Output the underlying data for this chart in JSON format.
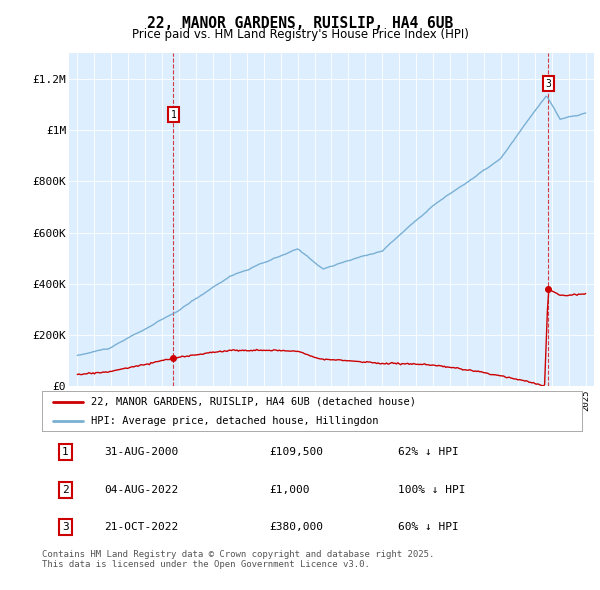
{
  "title": "22, MANOR GARDENS, RUISLIP, HA4 6UB",
  "subtitle": "Price paid vs. HM Land Registry's House Price Index (HPI)",
  "bg_color": "#ffffff",
  "plot_bg": "#ddeeff",
  "red_color": "#cc0000",
  "blue_color": "#7ab0d4",
  "marker1_x": 2000.66,
  "marker2_x": 2022.58,
  "marker3_x": 2022.8,
  "marker1_price": 109500,
  "marker2_price": 1000,
  "marker3_price": 380000,
  "ylim": [
    0,
    1300000
  ],
  "xlim": [
    1994.5,
    2025.5
  ],
  "legend_label_red": "22, MANOR GARDENS, RUISLIP, HA4 6UB (detached house)",
  "legend_label_blue": "HPI: Average price, detached house, Hillingdon",
  "table_rows": [
    [
      "1",
      "31-AUG-2000",
      "£109,500",
      "62% ↓ HPI"
    ],
    [
      "2",
      "04-AUG-2022",
      "£1,000",
      "100% ↓ HPI"
    ],
    [
      "3",
      "21-OCT-2022",
      "£380,000",
      "60% ↓ HPI"
    ]
  ],
  "footer": "Contains HM Land Registry data © Crown copyright and database right 2025.\nThis data is licensed under the Open Government Licence v3.0.",
  "ytick_labels": [
    "£0",
    "£200K",
    "£400K",
    "£600K",
    "£800K",
    "£1M",
    "£1.2M"
  ],
  "ytick_values": [
    0,
    200000,
    400000,
    600000,
    800000,
    1000000,
    1200000
  ]
}
